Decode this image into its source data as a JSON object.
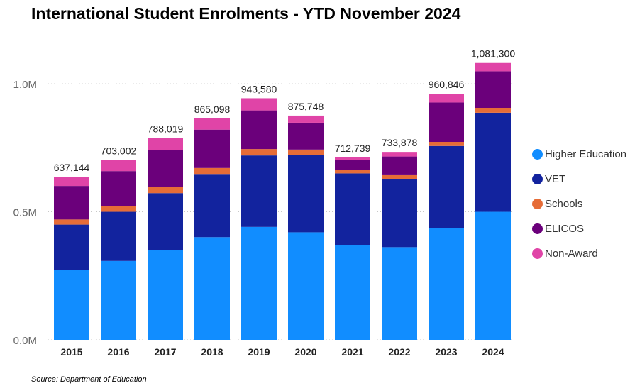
{
  "chart_data": {
    "type": "bar",
    "stacked": true,
    "title": "International Student Enrolments - YTD November 2024",
    "source": "Source: Department of Education",
    "categories": [
      "2015",
      "2016",
      "2017",
      "2018",
      "2019",
      "2020",
      "2021",
      "2022",
      "2023",
      "2024"
    ],
    "ylim": [
      0,
      1100000
    ],
    "yticks": [
      {
        "value": 0,
        "label": "0.0M"
      },
      {
        "value": 500000,
        "label": "0.5M"
      },
      {
        "value": 1000000,
        "label": "1.0M"
      }
    ],
    "grid": true,
    "legend_position": "right",
    "totals": [
      637144,
      703002,
      788019,
      865098,
      943580,
      875748,
      712739,
      733878,
      960846,
      1081300
    ],
    "total_labels": [
      "637,144",
      "703,002",
      "788,019",
      "865,098",
      "943,580",
      "875,748",
      "712,739",
      "733,878",
      "960,846",
      "1,081,300"
    ],
    "series": [
      {
        "name": "Higher Education",
        "color": "#118DFF",
        "values": [
          274000,
          308000,
          350000,
          401000,
          441000,
          420000,
          369000,
          362000,
          436000,
          500000
        ]
      },
      {
        "name": "VET",
        "color": "#12239E",
        "values": [
          176000,
          192000,
          223000,
          244000,
          279000,
          301000,
          281000,
          267000,
          321000,
          387000
        ]
      },
      {
        "name": "Schools",
        "color": "#E66C37",
        "values": [
          20000,
          22000,
          24000,
          26000,
          25000,
          22000,
          15000,
          14000,
          16000,
          19000
        ]
      },
      {
        "name": "ELICOS",
        "color": "#6B007B",
        "values": [
          131000,
          137000,
          144000,
          150000,
          151000,
          105000,
          37000,
          73000,
          154000,
          143000
        ]
      },
      {
        "name": "Non-Award",
        "color": "#E044A7",
        "values": [
          36144,
          44002,
          47019,
          44098,
          47580,
          27748,
          10739,
          17878,
          33846,
          32300
        ]
      }
    ]
  }
}
